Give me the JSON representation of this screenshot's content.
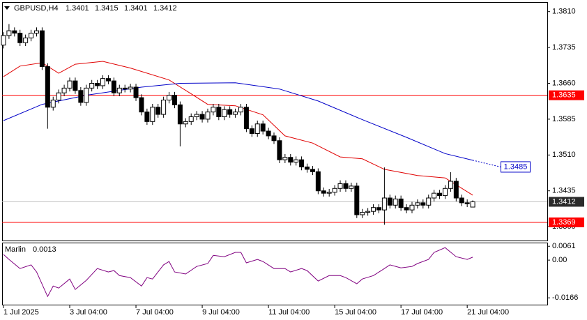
{
  "chart_data": [
    {
      "type": "candlestick",
      "title": "GBPUSD,H4",
      "open": [
        1.374,
        1.376,
        1.377,
        1.3765,
        1.3745,
        1.3755,
        1.3765,
        1.377,
        1.3695,
        1.361,
        1.3625,
        1.364,
        1.365,
        1.3665,
        1.3645,
        1.362,
        1.365,
        1.366,
        1.3655,
        1.367,
        1.3665,
        1.364,
        1.365,
        1.3648,
        1.3652,
        1.363,
        1.36,
        1.358,
        1.361,
        1.3595,
        1.3625,
        1.3635,
        1.3615,
        1.3575,
        1.358,
        1.359,
        1.3595,
        1.3585,
        1.36,
        1.361,
        1.359,
        1.3605,
        1.3595,
        1.36,
        1.361,
        1.3565,
        1.3555,
        1.3575,
        1.356,
        1.355,
        1.354,
        1.35,
        1.3505,
        1.3495,
        1.35,
        1.3485,
        1.348,
        1.3475,
        1.3435,
        1.343,
        1.3432,
        1.344,
        1.345,
        1.344,
        1.3445,
        1.3385,
        1.339,
        1.3392,
        1.34,
        1.3395,
        1.342,
        1.3405,
        1.3418,
        1.34,
        1.3395,
        1.3405,
        1.341,
        1.3405,
        1.342,
        1.343,
        1.3425,
        1.344,
        1.3455,
        1.342,
        1.341,
        1.3401
      ],
      "high": [
        1.3767,
        1.3784,
        1.3777,
        1.3772,
        1.3762,
        1.3772,
        1.3777,
        1.3777,
        1.3702,
        1.3632,
        1.3647,
        1.3657,
        1.3672,
        1.3672,
        1.3652,
        1.3657,
        1.3667,
        1.3667,
        1.3677,
        1.3677,
        1.3672,
        1.3657,
        1.3657,
        1.3659,
        1.3659,
        1.3637,
        1.3607,
        1.3617,
        1.3617,
        1.3632,
        1.3642,
        1.3642,
        1.3622,
        1.3587,
        1.3597,
        1.3602,
        1.3602,
        1.3607,
        1.3617,
        1.3617,
        1.3612,
        1.3612,
        1.3607,
        1.3617,
        1.3617,
        1.3572,
        1.3582,
        1.3582,
        1.3567,
        1.3557,
        1.3547,
        1.3512,
        1.3512,
        1.3507,
        1.3507,
        1.3492,
        1.3487,
        1.3482,
        1.3442,
        1.3439,
        1.3447,
        1.3457,
        1.3457,
        1.3452,
        1.3452,
        1.3397,
        1.3399,
        1.3407,
        1.3407,
        1.3484,
        1.3427,
        1.3425,
        1.3425,
        1.3407,
        1.3412,
        1.3417,
        1.3417,
        1.3427,
        1.3437,
        1.3437,
        1.3447,
        1.3474,
        1.3462,
        1.3427,
        1.3417,
        1.3415
      ],
      "low": [
        1.3733,
        1.3753,
        1.3758,
        1.3738,
        1.3738,
        1.3748,
        1.3758,
        1.3688,
        1.3565,
        1.3603,
        1.3618,
        1.3633,
        1.3643,
        1.3638,
        1.3613,
        1.3613,
        1.3643,
        1.3648,
        1.3648,
        1.3658,
        1.3633,
        1.3633,
        1.3641,
        1.3641,
        1.3623,
        1.3593,
        1.3573,
        1.3573,
        1.3588,
        1.3588,
        1.3618,
        1.3608,
        1.3528,
        1.3568,
        1.3573,
        1.3583,
        1.3578,
        1.3578,
        1.3593,
        1.3583,
        1.3583,
        1.3588,
        1.3588,
        1.3593,
        1.3558,
        1.3548,
        1.3548,
        1.3553,
        1.3543,
        1.3533,
        1.3493,
        1.3493,
        1.3488,
        1.3488,
        1.3478,
        1.3473,
        1.3468,
        1.3428,
        1.3423,
        1.3423,
        1.3425,
        1.3433,
        1.3433,
        1.3433,
        1.3378,
        1.3378,
        1.3383,
        1.3385,
        1.3388,
        1.3364,
        1.3398,
        1.3398,
        1.3393,
        1.3388,
        1.3388,
        1.3398,
        1.3398,
        1.3398,
        1.3413,
        1.3418,
        1.3418,
        1.3433,
        1.3413,
        1.3403,
        1.3401,
        1.3401
      ],
      "close": [
        1.376,
        1.377,
        1.3765,
        1.3745,
        1.3755,
        1.3765,
        1.377,
        1.3695,
        1.361,
        1.3625,
        1.364,
        1.365,
        1.3665,
        1.3645,
        1.362,
        1.365,
        1.366,
        1.3655,
        1.367,
        1.3665,
        1.364,
        1.365,
        1.3648,
        1.3652,
        1.363,
        1.36,
        1.358,
        1.361,
        1.3595,
        1.3625,
        1.3635,
        1.3615,
        1.3575,
        1.358,
        1.359,
        1.3595,
        1.3585,
        1.36,
        1.361,
        1.359,
        1.3605,
        1.3595,
        1.36,
        1.361,
        1.3565,
        1.3555,
        1.3575,
        1.356,
        1.355,
        1.354,
        1.35,
        1.3505,
        1.3495,
        1.35,
        1.3485,
        1.348,
        1.3475,
        1.3435,
        1.343,
        1.3432,
        1.344,
        1.345,
        1.344,
        1.3445,
        1.3385,
        1.339,
        1.3392,
        1.34,
        1.3395,
        1.342,
        1.3405,
        1.3418,
        1.34,
        1.3395,
        1.3405,
        1.341,
        1.3405,
        1.342,
        1.343,
        1.3425,
        1.344,
        1.3455,
        1.342,
        1.341,
        1.3408,
        1.3412
      ],
      "series": [
        {
          "color": "#e00000",
          "x": [
            0,
            3,
            7,
            10,
            13,
            18,
            23,
            30,
            34,
            37,
            42,
            47,
            51,
            56,
            61,
            65,
            69,
            75,
            80,
            85
          ],
          "values": [
            1.3674,
            1.3696,
            1.3703,
            1.3681,
            1.37,
            1.3706,
            1.3692,
            1.3667,
            1.3638,
            1.3616,
            1.3613,
            1.3594,
            1.355,
            1.3535,
            1.3506,
            1.3502,
            1.348,
            1.3467,
            1.3462,
            1.3426
          ]
        },
        {
          "color": "#0000c8",
          "x": [
            0,
            7,
            15,
            25,
            32,
            42,
            50,
            57,
            65,
            73,
            80,
            85
          ],
          "values": [
            1.3582,
            1.3616,
            1.3635,
            1.3652,
            1.366,
            1.3661,
            1.3648,
            1.3623,
            1.3584,
            1.3547,
            1.3513,
            1.3499
          ]
        }
      ],
      "levels": [
        {
          "value": 1.3635,
          "color": "#ff0000"
        },
        {
          "value": 1.3369,
          "color": "#ff0000"
        }
      ],
      "ma_label": {
        "value": 1.3485,
        "color": "#0000c8"
      },
      "xlim": [
        -0.25,
        98.5
      ],
      "xticks": [
        {
          "value": 0,
          "label": "1 Jul 2025"
        },
        {
          "value": 12,
          "label": "3 Jul 04:00"
        },
        {
          "value": 24,
          "label": "7 Jul 04:00"
        },
        {
          "value": 36,
          "label": "9 Jul 04:00"
        },
        {
          "value": 48,
          "label": "11 Jul 04:00"
        },
        {
          "value": 60,
          "label": "15 Jul 04:00"
        },
        {
          "value": 72,
          "label": "17 Jul 04:00"
        },
        {
          "value": 84,
          "label": "21 Jul 04:00"
        }
      ],
      "ylim": [
        1.3331,
        1.383
      ],
      "yticks": [
        {
          "value": 1.381,
          "label": "1.3810"
        },
        1.3735,
        {
          "value": 1.366,
          "label": "1.3660"
        },
        1.3585,
        {
          "value": 1.351,
          "label": "1.3510"
        },
        1.3435,
        {
          "value": 1.336,
          "label": "1.3360"
        }
      ]
    },
    {
      "type": "line",
      "title": "Marlin",
      "series": [
        {
          "color": "#800080",
          "x": [
            0,
            1,
            3,
            5,
            6,
            8,
            9,
            10,
            12,
            13,
            15,
            17,
            19,
            20,
            21,
            23,
            25,
            26,
            27,
            29,
            30,
            31,
            33,
            35,
            37,
            38,
            40,
            42,
            43,
            44,
            46,
            47,
            49,
            51,
            52,
            54,
            55,
            57,
            59,
            61,
            62,
            64,
            65,
            67,
            69,
            70,
            72,
            74,
            75,
            77,
            78,
            80,
            82,
            84,
            85
          ],
          "values": [
            0.0025,
            0.0003,
            -0.0037,
            -0.0021,
            -0.0052,
            -0.016,
            -0.0114,
            -0.0123,
            -0.0083,
            -0.0129,
            -0.0089,
            -0.0037,
            -0.0052,
            -0.0046,
            -0.0068,
            -0.0077,
            -0.0114,
            -0.0077,
            -0.0083,
            -0.0021,
            -0.0006,
            -0.0052,
            -0.0061,
            -0.0028,
            -0.0015,
            0.0021,
            0.0015,
            0.0034,
            0.0034,
            -0.0012,
            0.0003,
            -0.0006,
            -0.0037,
            -0.0037,
            -0.0052,
            -0.0037,
            -0.0046,
            -0.0092,
            -0.0068,
            -0.0068,
            -0.0077,
            -0.0104,
            -0.0083,
            -0.0068,
            -0.0037,
            -0.0021,
            -0.0034,
            -0.0028,
            -0.0015,
            0.0003,
            0.0034,
            0.0055,
            0.0015,
            0.0003,
            0.0013
          ]
        }
      ],
      "ylim": [
        -0.0196,
        0.0077
      ],
      "yticks": [
        0.0061,
        {
          "value": 0,
          "label": "0.00"
        },
        -0.0166
      ]
    }
  ]
}
